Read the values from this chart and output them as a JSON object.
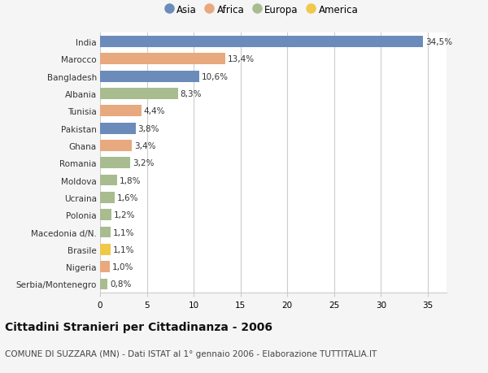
{
  "countries": [
    "India",
    "Marocco",
    "Bangladesh",
    "Albania",
    "Tunisia",
    "Pakistan",
    "Ghana",
    "Romania",
    "Moldova",
    "Ucraina",
    "Polonia",
    "Macedonia d/N.",
    "Brasile",
    "Nigeria",
    "Serbia/Montenegro"
  ],
  "values": [
    34.5,
    13.4,
    10.6,
    8.3,
    4.4,
    3.8,
    3.4,
    3.2,
    1.8,
    1.6,
    1.2,
    1.1,
    1.1,
    1.0,
    0.8
  ],
  "labels": [
    "34,5%",
    "13,4%",
    "10,6%",
    "8,3%",
    "4,4%",
    "3,8%",
    "3,4%",
    "3,2%",
    "1,8%",
    "1,6%",
    "1,2%",
    "1,1%",
    "1,1%",
    "1,0%",
    "0,8%"
  ],
  "continents": [
    "Asia",
    "Africa",
    "Asia",
    "Europa",
    "Africa",
    "Asia",
    "Africa",
    "Europa",
    "Europa",
    "Europa",
    "Europa",
    "Europa",
    "America",
    "Africa",
    "Europa"
  ],
  "continent_colors": {
    "Asia": "#6b8cba",
    "Africa": "#e8a97e",
    "Europa": "#a8bc8f",
    "America": "#f0c84a"
  },
  "legend_order": [
    "Asia",
    "Africa",
    "Europa",
    "America"
  ],
  "title": "Cittadini Stranieri per Cittadinanza - 2006",
  "subtitle": "COMUNE DI SUZZARA (MN) - Dati ISTAT al 1° gennaio 2006 - Elaborazione TUTTITALIA.IT",
  "xlim": [
    0,
    37
  ],
  "xticks": [
    0,
    5,
    10,
    15,
    20,
    25,
    30,
    35
  ],
  "background_color": "#f5f5f5",
  "bar_background": "#ffffff",
  "grid_color": "#cccccc",
  "title_fontsize": 10,
  "subtitle_fontsize": 7.5,
  "label_fontsize": 7.5,
  "tick_fontsize": 7.5,
  "bar_height": 0.65
}
